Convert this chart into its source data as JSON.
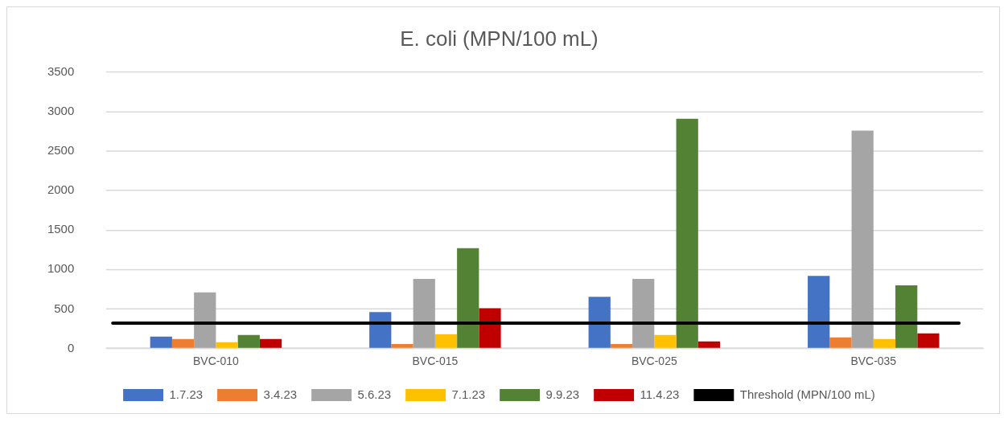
{
  "chart_data": {
    "type": "bar",
    "title": "E. coli (MPN/100 mL)",
    "categories": [
      "BVC-010",
      "BVC-015",
      "BVC-025",
      "BVC-035"
    ],
    "series": [
      {
        "name": "1.7.23",
        "color": "#4472c4",
        "values": [
          150,
          460,
          655,
          920
        ]
      },
      {
        "name": "3.4.23",
        "color": "#ed7d31",
        "values": [
          120,
          55,
          55,
          140
        ]
      },
      {
        "name": "5.6.23",
        "color": "#a5a5a5",
        "values": [
          710,
          880,
          880,
          2760
        ]
      },
      {
        "name": "7.1.23",
        "color": "#ffc000",
        "values": [
          80,
          180,
          170,
          120
        ]
      },
      {
        "name": "9.9.23",
        "color": "#548235",
        "values": [
          170,
          1270,
          2910,
          800
        ]
      },
      {
        "name": "11.4.23",
        "color": "#c00000",
        "values": [
          120,
          510,
          90,
          190
        ]
      }
    ],
    "ref_lines": [
      {
        "axis": "y",
        "value": 320,
        "label": "Threshold (MPN/100 mL)",
        "color": "#000000"
      }
    ],
    "ylim": [
      0,
      3500
    ],
    "yticks": [
      0,
      500,
      1000,
      1500,
      2000,
      2500,
      3000,
      3500
    ],
    "grid": "y",
    "legend": "bottom"
  }
}
